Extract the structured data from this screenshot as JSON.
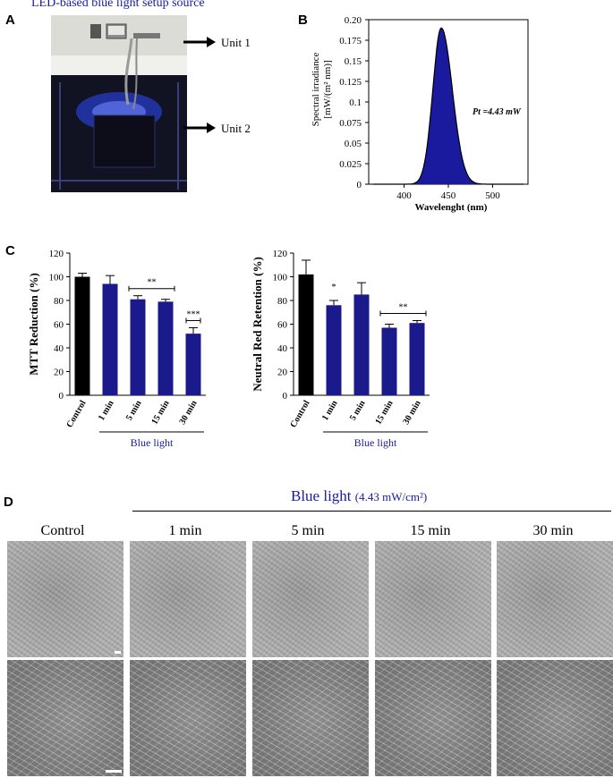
{
  "panels": {
    "a": "A",
    "b": "B",
    "c": "C",
    "d": "D"
  },
  "setup": {
    "title": "LED-based blue light setup source",
    "unit1": "Unit 1",
    "unit2": "Unit 2",
    "led_color": "#2f4bff"
  },
  "spectrum": {
    "ylabel_line1": "Spectral irradiance",
    "ylabel_line2": "[mW/(m² nm)]",
    "xlabel": "Wavelenght (nm)",
    "annotation": "Pt =4.43 mW",
    "yticks": [
      "0",
      "0.025",
      "0.05",
      "0.075",
      "0.1",
      "0.125",
      "0.15",
      "0.175",
      "0.20"
    ],
    "xticks": [
      "400",
      "450",
      "500"
    ],
    "fill_color": "#1a1a9e"
  },
  "chart_data": [
    {
      "type": "line",
      "xlabel": "Wavelenght (nm)",
      "ylabel": "Spectral irradiance [mW/(m² nm)]",
      "xlim": [
        360,
        540
      ],
      "ylim": [
        0,
        0.2
      ],
      "x": [
        365,
        400,
        415,
        425,
        432,
        438,
        442,
        446,
        452,
        460,
        470,
        480,
        500,
        535
      ],
      "y": [
        0,
        0.001,
        0.008,
        0.04,
        0.11,
        0.175,
        0.19,
        0.17,
        0.1,
        0.04,
        0.012,
        0.004,
        0.001,
        0
      ],
      "annotations": [
        "Pt =4.43 mW"
      ]
    },
    {
      "type": "bar",
      "ylabel": "MTT Reduction (%)",
      "ylim": [
        0,
        120
      ],
      "categories": [
        "Control",
        "1 min",
        "5 min",
        "15 min",
        "30 min"
      ],
      "values": [
        100,
        94,
        81,
        79,
        52
      ],
      "errors": [
        3,
        7,
        3,
        2,
        5
      ],
      "group_label": "Blue light",
      "significance": [
        {
          "from": 2,
          "to": 3,
          "label": "**"
        },
        {
          "from": 4,
          "to": 4,
          "label": "***"
        }
      ]
    },
    {
      "type": "bar",
      "ylabel": "Neutral Red Retention (%)",
      "ylim": [
        0,
        120
      ],
      "categories": [
        "Control",
        "1 min",
        "5 min",
        "15 min",
        "30 min"
      ],
      "values": [
        102,
        76,
        85,
        57,
        61
      ],
      "errors": [
        12,
        4,
        10,
        3,
        2
      ],
      "group_label": "Blue light",
      "significance": [
        {
          "from": 1,
          "to": 1,
          "label": "*"
        },
        {
          "from": 3,
          "to": 4,
          "label": "**"
        }
      ]
    }
  ],
  "bar_colors": {
    "control": "#000000",
    "treated": "#1a1a8c"
  },
  "micrographs": {
    "heading_main": "Blue light",
    "heading_dose": "(4.43 mW/cm²)",
    "columns": [
      "Control",
      "1 min",
      "5 min",
      "15 min",
      "30 min"
    ]
  }
}
